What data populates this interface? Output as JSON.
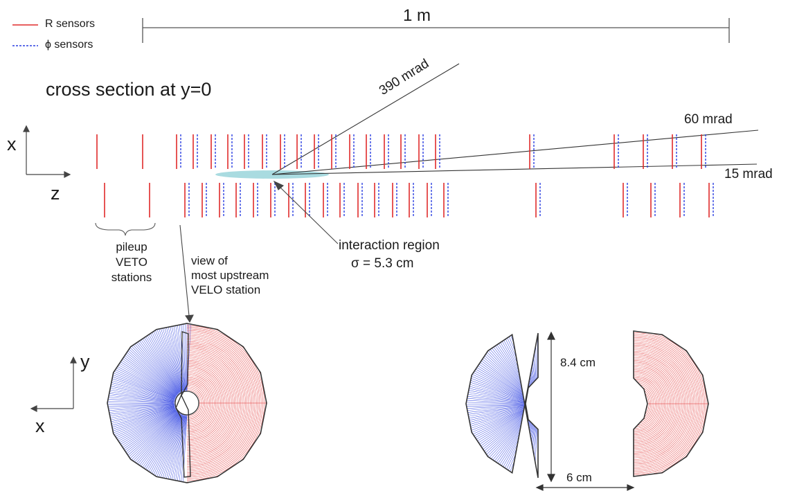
{
  "legend": {
    "r_sensors": "R sensors",
    "phi_sensors": "ϕ sensors"
  },
  "scale_label": "1 m",
  "title": "cross section at y=0",
  "axes_top": {
    "vertical": "x",
    "horizontal": "z"
  },
  "angles": {
    "large": "390 mrad",
    "medium": "60 mrad",
    "small": "15 mrad"
  },
  "interaction": {
    "line1": "interaction region",
    "line2": "σ = 5.3 cm"
  },
  "pileup": {
    "line1": "pileup",
    "line2": "VETO",
    "line3": "stations"
  },
  "view_note": {
    "line1": "view of",
    "line2": "most upstream",
    "line3": "VELO station"
  },
  "axes_bottom": {
    "vertical": "y",
    "horizontal": "x"
  },
  "dimensions": {
    "height": "8.4 cm",
    "width": "6 cm"
  },
  "colors": {
    "r_sensor": "#e02a2a",
    "phi_sensor": "#2a3ee0",
    "beam_spot": "#a9dbe0",
    "outline": "#333333"
  }
}
